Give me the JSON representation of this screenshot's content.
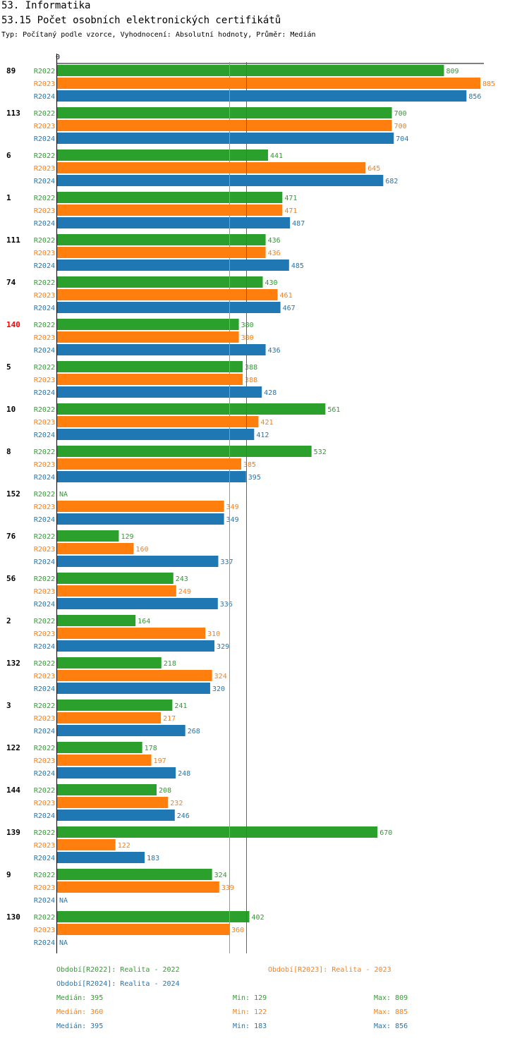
{
  "header": {
    "title": "53. Informatika",
    "subtitle": "53.15 Počet osobních elektronických certifikátů",
    "meta": "Typ: Počítaný podle vzorce, Vyhodnocení: Absolutní hodnoty, Průměr: Medián"
  },
  "chart_data": {
    "type": "bar",
    "orientation": "horizontal",
    "axis_zero_label": "0",
    "xlim": [
      0,
      885
    ],
    "series_names": [
      "R2022",
      "R2023",
      "R2024"
    ],
    "colors": {
      "R2022": "#2ca02c",
      "R2023": "#ff7f0e",
      "R2024": "#1f77b4",
      "highlight": "#ff0000"
    },
    "na_label": "NA",
    "groups": [
      {
        "id": "89",
        "highlight": false,
        "values": [
          809,
          885,
          856
        ]
      },
      {
        "id": "113",
        "highlight": false,
        "values": [
          700,
          700,
          704
        ]
      },
      {
        "id": "6",
        "highlight": false,
        "values": [
          441,
          645,
          682
        ]
      },
      {
        "id": "1",
        "highlight": false,
        "values": [
          471,
          471,
          487
        ]
      },
      {
        "id": "111",
        "highlight": false,
        "values": [
          436,
          436,
          485
        ]
      },
      {
        "id": "74",
        "highlight": false,
        "values": [
          430,
          461,
          467
        ]
      },
      {
        "id": "140",
        "highlight": true,
        "values": [
          380,
          380,
          436
        ]
      },
      {
        "id": "5",
        "highlight": false,
        "values": [
          388,
          388,
          428
        ]
      },
      {
        "id": "10",
        "highlight": false,
        "values": [
          561,
          421,
          412
        ]
      },
      {
        "id": "8",
        "highlight": false,
        "values": [
          532,
          385,
          395
        ]
      },
      {
        "id": "152",
        "highlight": false,
        "values": [
          null,
          349,
          349
        ]
      },
      {
        "id": "76",
        "highlight": false,
        "values": [
          129,
          160,
          337
        ]
      },
      {
        "id": "56",
        "highlight": false,
        "values": [
          243,
          249,
          336
        ]
      },
      {
        "id": "2",
        "highlight": false,
        "values": [
          164,
          310,
          329
        ]
      },
      {
        "id": "132",
        "highlight": false,
        "values": [
          218,
          324,
          320
        ]
      },
      {
        "id": "3",
        "highlight": false,
        "values": [
          241,
          217,
          268
        ]
      },
      {
        "id": "122",
        "highlight": false,
        "values": [
          178,
          197,
          248
        ]
      },
      {
        "id": "144",
        "highlight": false,
        "values": [
          208,
          232,
          246
        ]
      },
      {
        "id": "139",
        "highlight": false,
        "values": [
          670,
          122,
          183
        ]
      },
      {
        "id": "9",
        "highlight": false,
        "values": [
          324,
          339,
          null
        ]
      },
      {
        "id": "130",
        "highlight": false,
        "values": [
          402,
          360,
          null
        ]
      }
    ],
    "reference_lines": [
      {
        "series": "R2023",
        "label": "Medián",
        "value": 360
      },
      {
        "series": "R2024",
        "label": "Medián",
        "value": 395
      }
    ],
    "legend": [
      {
        "series": "R2022",
        "text": "Období[R2022]: Realita - 2022"
      },
      {
        "series": "R2023",
        "text": "Období[R2023]: Realita - 2023"
      },
      {
        "series": "R2024",
        "text": "Období[R2024]: Realita - 2024"
      }
    ],
    "stats": [
      {
        "series": "R2022",
        "median": "Medián: 395",
        "min": "Min: 129",
        "max": "Max: 809"
      },
      {
        "series": "R2023",
        "median": "Medián: 360",
        "min": "Min: 122",
        "max": "Max: 885"
      },
      {
        "series": "R2024",
        "median": "Medián: 395",
        "min": "Min: 183",
        "max": "Max: 856"
      }
    ]
  }
}
